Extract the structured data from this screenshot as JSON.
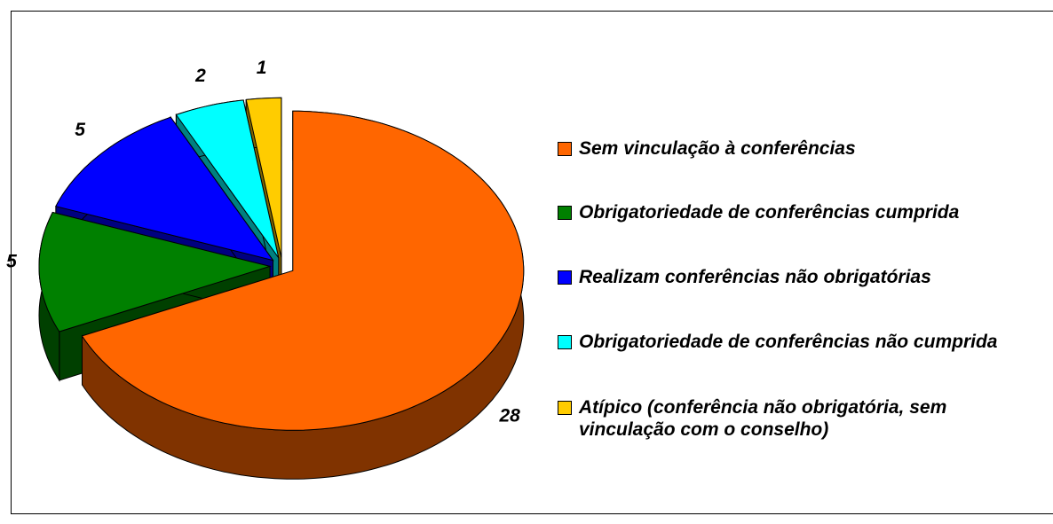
{
  "chart_data": {
    "type": "pie",
    "categories": [
      "Sem vinculação à conferências",
      "Obrigatoriedade de conferências cumprida",
      "Realizam conferências não obrigatórias",
      "Obrigatoriedade de conferências não cumprida",
      "Atípico (conferência não obrigatória, sem vinculação com o conselho)"
    ],
    "values": [
      28,
      5,
      5,
      2,
      1
    ],
    "colors": [
      "#ff6600",
      "#008000",
      "#0000ff",
      "#00ffff",
      "#ffcc00"
    ]
  }
}
